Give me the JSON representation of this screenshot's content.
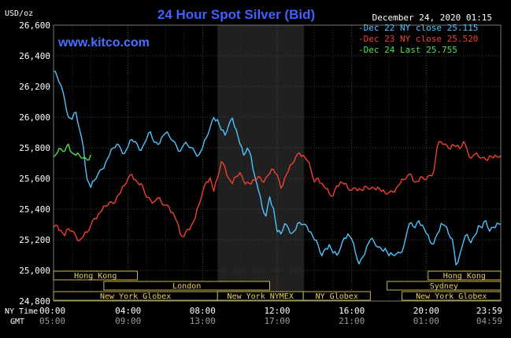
{
  "chart_data": {
    "type": "line",
    "title": "24 Hour Spot Silver (Bid)",
    "unit_label": "USD/oz",
    "date_label": "December 24, 2020 01:15",
    "watermark": "www.kitco.com",
    "ylim": [
      24.8,
      26.6
    ],
    "y_ticks": [
      "26,600",
      "26,400",
      "26,200",
      "26,000",
      "25,800",
      "25,600",
      "25,400",
      "25,200",
      "25,000",
      "24,800"
    ],
    "x_ticks_ny": [
      "00:00",
      "04:00",
      "08:00",
      "12:00",
      "16:00",
      "20:00",
      "23:59"
    ],
    "x_ticks_gmt": [
      "05:00",
      "09:00",
      "13:00",
      "17:00",
      "21:00",
      "01:00",
      "04:59"
    ],
    "x_axis_label_ny": "NY Time",
    "x_axis_label_gmt": "GMT",
    "grid": true,
    "legend_position": "top-right",
    "shaded_hours": [
      8.8,
      13.45
    ],
    "markets": [
      {
        "label": "Hong Kong",
        "row": 0,
        "start": 0.0,
        "end": 4.5
      },
      {
        "label": "Hong Kong",
        "row": 0,
        "start": 20.1,
        "end": 24.0
      },
      {
        "label": "London",
        "row": 1,
        "start": 2.7,
        "end": 11.6
      },
      {
        "label": "Sydney",
        "row": 1,
        "start": 17.9,
        "end": 24.0
      },
      {
        "label": "New York Globex",
        "row": 2,
        "start": 0.0,
        "end": 8.8
      },
      {
        "label": "New York NYMEX",
        "row": 2,
        "start": 8.8,
        "end": 13.4
      },
      {
        "label": "NY Globex",
        "row": 2,
        "start": 13.4,
        "end": 17.0
      },
      {
        "label": "New York Globex",
        "row": 2,
        "start": 18.7,
        "end": 24.0
      }
    ],
    "series": [
      {
        "name": "Dec 22 NY close 25.115",
        "color": "#4fc3ff",
        "x": [
          0.0,
          0.2,
          0.4,
          0.6,
          0.8,
          1.0,
          1.2,
          1.4,
          1.6,
          1.8,
          2.0,
          2.2,
          2.4,
          2.6,
          2.8,
          3.0,
          3.2,
          3.4,
          3.6,
          3.8,
          4.0,
          4.2,
          4.4,
          4.6,
          4.8,
          5.0,
          5.2,
          5.4,
          5.6,
          5.8,
          6.0,
          6.2,
          6.4,
          6.6,
          6.8,
          7.0,
          7.2,
          7.4,
          7.6,
          7.8,
          8.0,
          8.2,
          8.4,
          8.6,
          8.8,
          9.0,
          9.2,
          9.4,
          9.6,
          9.8,
          10.0,
          10.2,
          10.4,
          10.6,
          10.8,
          11.0,
          11.2,
          11.4,
          11.6,
          11.8,
          12.0,
          12.2,
          12.4,
          12.6,
          12.8,
          13.0,
          13.2,
          13.4,
          13.6,
          13.8,
          14.0,
          14.2,
          14.4,
          14.6,
          14.8,
          15.0,
          15.2,
          15.4,
          15.6,
          15.8,
          16.0,
          16.2,
          16.4,
          16.6,
          16.8,
          17.0,
          17.2,
          17.4,
          17.6,
          17.8,
          18.0,
          18.2,
          18.4,
          18.6,
          18.8,
          19.0,
          19.2,
          19.4,
          19.6,
          19.8,
          20.0,
          20.2,
          20.4,
          20.6,
          20.8,
          21.0,
          21.2,
          21.4,
          21.6,
          21.8,
          22.0,
          22.2,
          22.4,
          22.6,
          22.8,
          23.0,
          23.2,
          23.4,
          23.6,
          23.8,
          24.0
        ],
        "y": [
          26.3,
          26.28,
          26.22,
          26.12,
          26.0,
          25.98,
          26.02,
          25.9,
          25.78,
          25.62,
          25.56,
          25.6,
          25.64,
          25.66,
          25.7,
          25.74,
          25.78,
          25.8,
          25.82,
          25.78,
          25.82,
          25.86,
          25.84,
          25.78,
          25.8,
          25.84,
          25.88,
          25.86,
          25.84,
          25.88,
          25.9,
          25.88,
          25.84,
          25.8,
          25.76,
          25.8,
          25.84,
          25.82,
          25.78,
          25.76,
          25.8,
          25.86,
          25.92,
          25.98,
          25.96,
          25.94,
          25.9,
          25.96,
          26.0,
          25.92,
          25.82,
          25.74,
          25.78,
          25.72,
          25.64,
          25.54,
          25.42,
          25.36,
          25.48,
          25.4,
          25.24,
          25.22,
          25.28,
          25.3,
          25.26,
          25.28,
          25.32,
          25.3,
          25.28,
          25.24,
          25.18,
          25.14,
          25.12,
          25.16,
          25.18,
          25.12,
          25.1,
          25.14,
          25.2,
          25.22,
          25.18,
          25.14,
          25.06,
          25.1,
          25.16,
          25.2,
          25.18,
          25.14,
          25.12,
          25.12,
          25.12,
          25.12,
          25.12,
          25.12,
          25.16,
          25.26,
          25.3,
          25.26,
          25.3,
          25.32,
          25.26,
          25.2,
          25.18,
          25.24,
          25.3,
          25.28,
          25.22,
          25.18,
          25.06,
          25.12,
          25.2,
          25.24,
          25.18,
          25.22,
          25.28,
          25.26,
          25.3,
          25.28,
          25.3,
          25.32,
          25.3
        ]
      },
      {
        "name": "Dec 23 NY close 25.520",
        "color": "#f04030",
        "x": [
          0.0,
          0.2,
          0.4,
          0.6,
          0.8,
          1.0,
          1.2,
          1.4,
          1.6,
          1.8,
          2.0,
          2.2,
          2.4,
          2.6,
          2.8,
          3.0,
          3.2,
          3.4,
          3.6,
          3.8,
          4.0,
          4.2,
          4.4,
          4.6,
          4.8,
          5.0,
          5.2,
          5.4,
          5.6,
          5.8,
          6.0,
          6.2,
          6.4,
          6.6,
          6.8,
          7.0,
          7.2,
          7.4,
          7.6,
          7.8,
          8.0,
          8.2,
          8.4,
          8.6,
          8.8,
          9.0,
          9.2,
          9.4,
          9.6,
          9.8,
          10.0,
          10.2,
          10.4,
          10.6,
          10.8,
          11.0,
          11.2,
          11.4,
          11.6,
          11.8,
          12.0,
          12.2,
          12.4,
          12.6,
          12.8,
          13.0,
          13.2,
          13.4,
          13.6,
          13.8,
          14.0,
          14.2,
          14.4,
          14.6,
          14.8,
          15.0,
          15.2,
          15.4,
          15.6,
          15.8,
          16.0,
          16.2,
          16.4,
          16.6,
          16.8,
          17.0,
          17.2,
          17.4,
          17.6,
          17.8,
          18.0,
          18.2,
          18.4,
          18.6,
          18.8,
          19.0,
          19.2,
          19.4,
          19.6,
          19.8,
          20.0,
          20.2,
          20.4,
          20.6,
          20.8,
          21.0,
          21.2,
          21.4,
          21.6,
          21.8,
          22.0,
          22.2,
          22.4,
          22.6,
          22.8,
          23.0,
          23.2,
          23.4,
          23.6,
          23.8,
          24.0
        ],
        "y": [
          25.28,
          25.3,
          25.26,
          25.22,
          25.26,
          25.24,
          25.2,
          25.22,
          25.24,
          25.26,
          25.3,
          25.34,
          25.36,
          25.38,
          25.4,
          25.42,
          25.46,
          25.5,
          25.52,
          25.56,
          25.6,
          25.62,
          25.58,
          25.54,
          25.52,
          25.5,
          25.48,
          25.46,
          25.48,
          25.44,
          25.42,
          25.4,
          25.36,
          25.3,
          25.26,
          25.24,
          25.28,
          25.3,
          25.34,
          25.42,
          25.5,
          25.56,
          25.58,
          25.54,
          25.62,
          25.72,
          25.68,
          25.6,
          25.56,
          25.6,
          25.62,
          25.56,
          25.6,
          25.58,
          25.6,
          25.62,
          25.58,
          25.6,
          25.62,
          25.64,
          25.6,
          25.56,
          25.62,
          25.66,
          25.7,
          25.74,
          25.76,
          25.74,
          25.7,
          25.64,
          25.6,
          25.62,
          25.58,
          25.54,
          25.5,
          25.48,
          25.54,
          25.56,
          25.54,
          25.56,
          25.54,
          25.55,
          25.54,
          25.52,
          25.54,
          25.52,
          25.52,
          25.52,
          25.54,
          25.52,
          25.52,
          25.52,
          25.54,
          25.56,
          25.58,
          25.6,
          25.6,
          25.6,
          25.6,
          25.62,
          25.6,
          25.62,
          25.64,
          25.8,
          25.82,
          25.8,
          25.82,
          25.84,
          25.82,
          25.8,
          25.84,
          25.78,
          25.72,
          25.74,
          25.72,
          25.76,
          25.74,
          25.76,
          25.74,
          25.74,
          25.75
        ]
      },
      {
        "name": "Dec 24 Last 25.755",
        "color": "#50e050",
        "x": [
          0.0,
          0.2,
          0.4,
          0.6,
          0.8,
          1.0,
          1.2,
          1.4,
          1.6,
          1.8,
          2.0
        ],
        "y": [
          25.74,
          25.76,
          25.78,
          25.76,
          25.8,
          25.79,
          25.77,
          25.76,
          25.74,
          25.72,
          25.755
        ]
      }
    ]
  }
}
